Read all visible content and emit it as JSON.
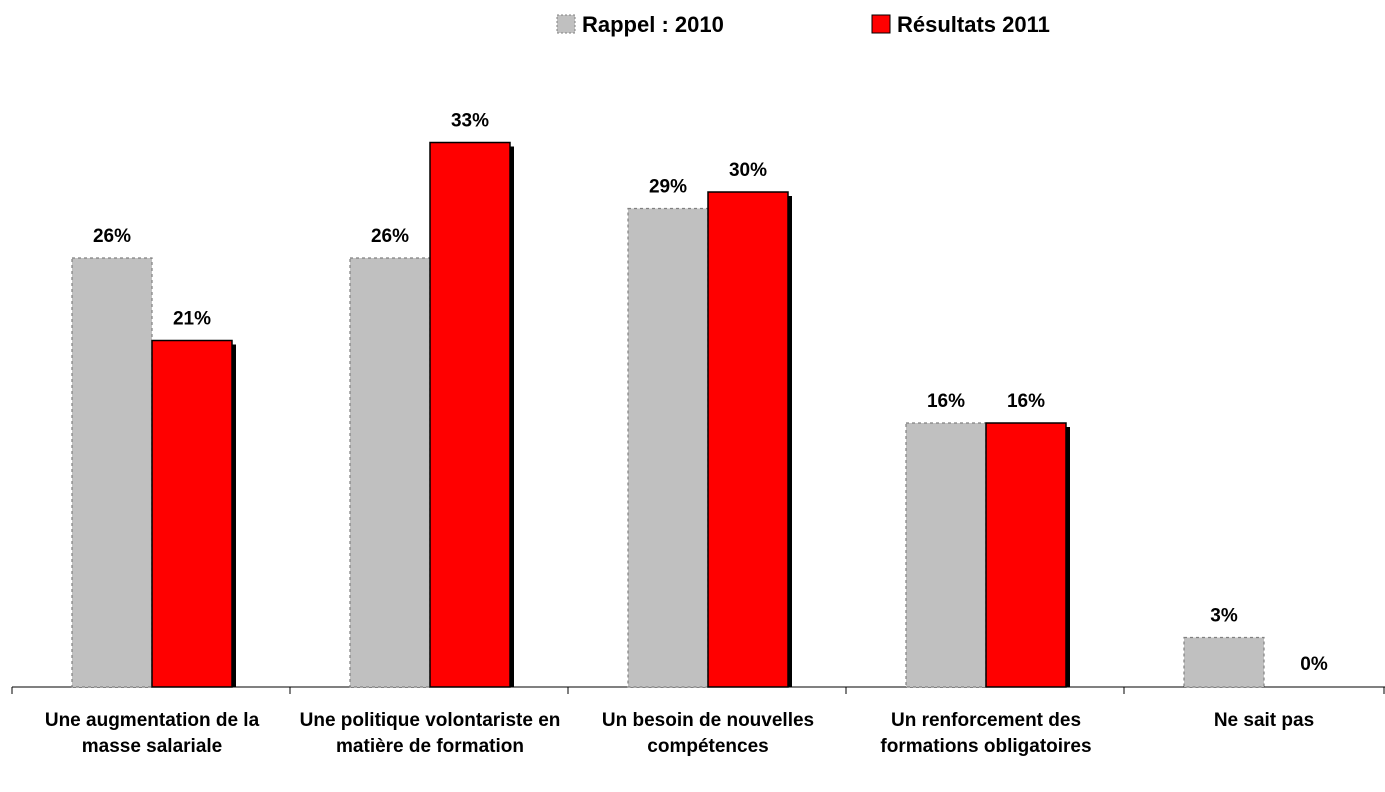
{
  "chart_data": {
    "type": "bar",
    "categories": [
      "Une augmentation de la masse salariale",
      "Une politique volontariste en matière de formation",
      "Un besoin de nouvelles compétences",
      "Un renforcement des formations obligatoires",
      "Ne sait pas"
    ],
    "series": [
      {
        "name": "Rappel : 2010",
        "color": "#c0c0c0",
        "values": [
          26,
          26,
          29,
          16,
          3
        ],
        "value_labels": [
          "26%",
          "26%",
          "29%",
          "16%",
          "3%"
        ]
      },
      {
        "name": "Résultats 2011",
        "color": "#ff0000",
        "values": [
          21,
          33,
          30,
          16,
          0
        ],
        "value_labels": [
          "21%",
          "33%",
          "30%",
          "16%",
          "0%"
        ]
      }
    ],
    "ylim": [
      0,
      35
    ],
    "legend": "top"
  }
}
